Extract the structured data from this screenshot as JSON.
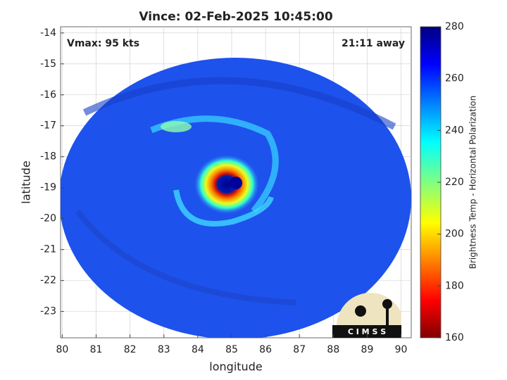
{
  "chart_data": {
    "type": "image",
    "title": "Vince: 02-Feb-2025 10:45:00",
    "annotations": [
      "Vmax: 95 kts",
      "21:11 away"
    ],
    "xlabel": "longitude",
    "ylabel": "latitude",
    "xlim": [
      79.95,
      90.3
    ],
    "xticks": [
      80,
      81,
      82,
      83,
      84,
      85,
      86,
      87,
      88,
      89,
      90
    ],
    "ylim": [
      -23.85,
      -13.8
    ],
    "yticks": [
      -14,
      -15,
      -16,
      -17,
      -18,
      -19,
      -20,
      -21,
      -22,
      -23
    ],
    "grid": true,
    "colorbar": {
      "label": "Brightness Temp - Horizontal Polarization",
      "lim": [
        160,
        280
      ],
      "ticks": [
        160,
        180,
        200,
        220,
        240,
        260,
        280
      ]
    },
    "logo": "C I M S S"
  }
}
